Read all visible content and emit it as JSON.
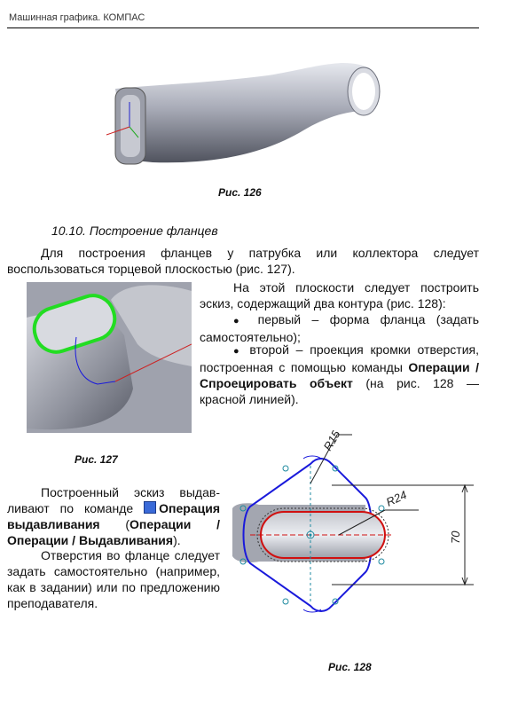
{
  "header": {
    "running_title": "Машинная графика. КОМПАС"
  },
  "figures": {
    "fig126": {
      "caption": "Рис. 126"
    },
    "fig127": {
      "caption": "Рис. 127"
    },
    "fig128": {
      "caption": "Рис. 128",
      "dim_r15": "R15",
      "dim_r24": "R24",
      "dim_70": "70"
    }
  },
  "section": {
    "title": "10.10. Построение фланцев"
  },
  "paragraphs": {
    "p1": "Для построения фланцев у патрубка или коллектора следует воспользоваться торцевой плоскостью (рис. 127).",
    "p2": "На этой плоскости следует построить эскиз, содержащий два контура (рис. 128):",
    "bullet1": "первый – форма фланца (задать самостоятельно);",
    "bullet2_pre": "второй – проекция кромки отвер­стия, построенная с помощью команды ",
    "bullet2_bold": "Операции / Спроецировать объект",
    "bullet2_post": " (на рис. 128 — красной линией).",
    "p3_pre": "Построенный эскиз выдав­ливают по команде ",
    "p3_bold1": "Операция выдавливания",
    "p3_mid": " (",
    "p3_bold2": "Операции / Операции / Выдавливания",
    "p3_post": ").",
    "p4": "Отверстия во фланце сле­дует задать самостоятельно (например, как в задании) или по предложению преподавателя."
  },
  "colors": {
    "flange_outline": "#1a1adb",
    "projection": "#d01010",
    "highlight": "#22dd22",
    "dim": "#222222"
  },
  "icons": {
    "extrude_command": "extrude-operation-icon"
  }
}
